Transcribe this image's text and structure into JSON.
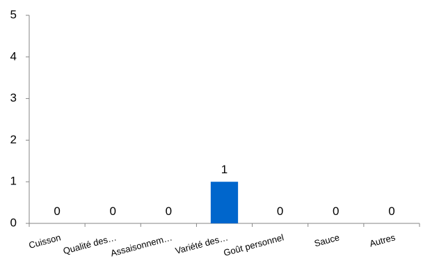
{
  "chart_data": {
    "type": "bar",
    "categories": [
      "Cuisson",
      "Qualité des…",
      "Assaisonnem…",
      "Variété des…",
      "Goût personnel",
      "Sauce",
      "Autres"
    ],
    "values": [
      0,
      0,
      0,
      1,
      0,
      0,
      0
    ],
    "data_labels": [
      "0",
      "0",
      "0",
      "1",
      "0",
      "0",
      "0"
    ],
    "ylim": [
      0,
      5
    ],
    "yticks": [
      0,
      1,
      2,
      3,
      4,
      5
    ],
    "title": "",
    "xlabel": "",
    "ylabel": "",
    "grid": false,
    "bar_color": "#0066CC",
    "axis_color": "#868686"
  }
}
